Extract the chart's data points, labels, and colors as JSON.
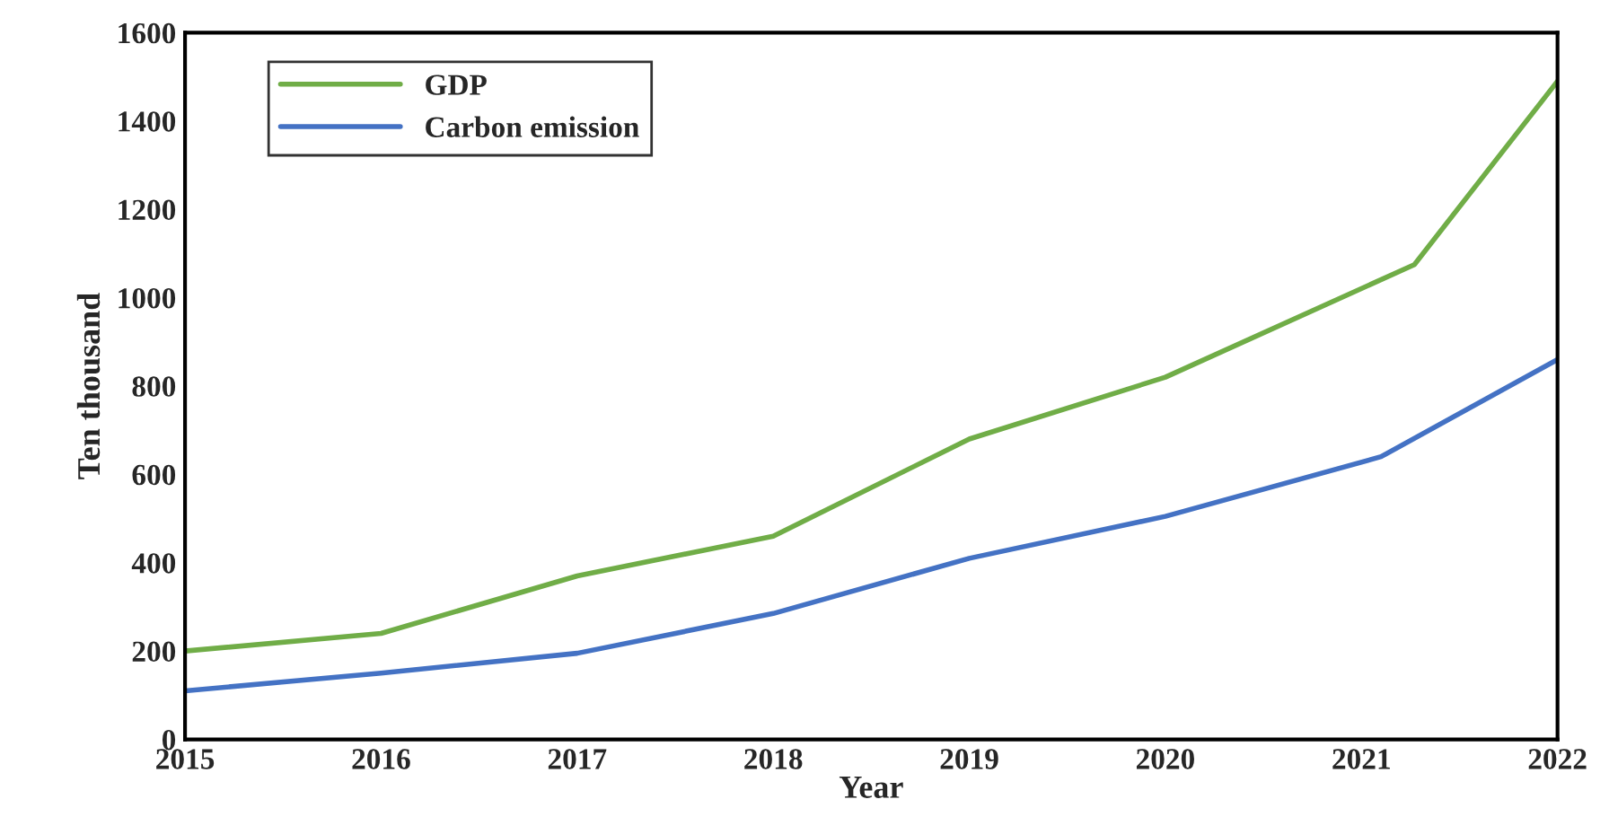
{
  "chart_data": {
    "type": "line",
    "xlabel": "Year",
    "ylabel": "Ten thousand",
    "xlim": [
      2015,
      2022
    ],
    "xticks": [
      2015,
      2016,
      2017,
      2018,
      2019,
      2020,
      2021,
      2022
    ],
    "ylim": [
      0,
      1600
    ],
    "yticks": [
      0,
      200,
      400,
      600,
      800,
      1000,
      1200,
      1400,
      1600
    ],
    "grid": false,
    "legend": "top left",
    "marker": "none",
    "line_style": "solid",
    "series": [
      {
        "name": "GDP",
        "color": "#70ad47",
        "x": [
          2015,
          2016,
          2017,
          2018,
          2019,
          2020,
          2021.27,
          2022
        ],
        "values": [
          200,
          240,
          370,
          460,
          680,
          820,
          1075,
          1490
        ]
      },
      {
        "name": "Carbon emission",
        "color": "#4472c4",
        "x": [
          2015,
          2016,
          2017,
          2018,
          2019,
          2020,
          2021.1,
          2022
        ],
        "values": [
          110,
          150,
          195,
          285,
          410,
          505,
          640,
          860
        ]
      }
    ]
  }
}
